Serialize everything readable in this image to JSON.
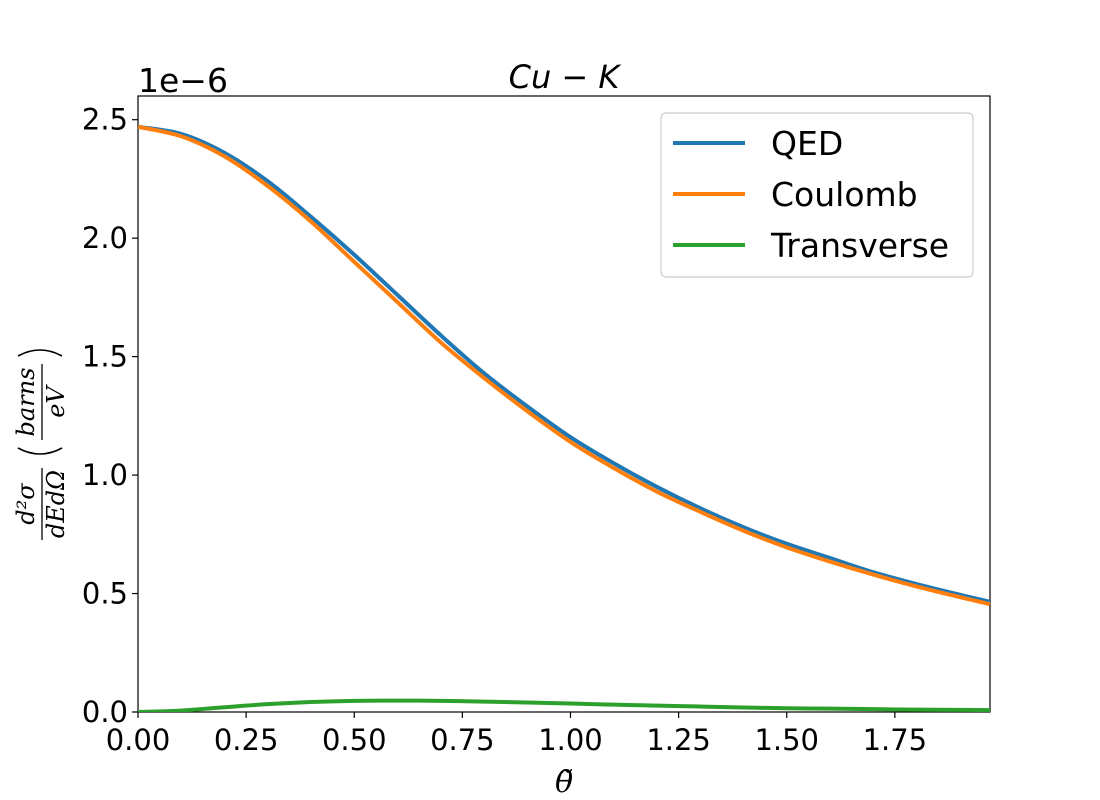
{
  "chart_data": {
    "type": "line",
    "title": "Cu − K",
    "xlabel": "θ̃",
    "ylabel": "d²σ/dEdΩ (barns/eV)",
    "ylabel_parts": {
      "num": "d²σ",
      "den": "dEdΩ",
      "unit_num": "barns",
      "unit_den": "eV"
    },
    "y_offset_label": "1e−6",
    "xlim": [
      0.0,
      1.97
    ],
    "ylim": [
      0.0,
      2.6
    ],
    "x_ticks": [
      0.0,
      0.25,
      0.5,
      0.75,
      1.0,
      1.25,
      1.5,
      1.75
    ],
    "x_tick_labels": [
      "0.00",
      "0.25",
      "0.50",
      "0.75",
      "1.00",
      "1.25",
      "1.50",
      "1.75"
    ],
    "y_ticks": [
      0.0,
      0.5,
      1.0,
      1.5,
      2.0,
      2.5
    ],
    "y_tick_labels": [
      "0.0",
      "0.5",
      "1.0",
      "1.5",
      "2.0",
      "2.5"
    ],
    "legend_position": "top-right",
    "x": [
      0.0,
      0.1,
      0.2,
      0.3,
      0.4,
      0.5,
      0.6,
      0.7,
      0.8,
      0.9,
      1.0,
      1.1,
      1.2,
      1.3,
      1.4,
      1.5,
      1.6,
      1.7,
      1.8,
      1.9,
      1.97
    ],
    "series": [
      {
        "name": "QED",
        "color": "#1f77b4",
        "values": [
          2.47,
          2.44,
          2.36,
          2.24,
          2.09,
          1.93,
          1.76,
          1.59,
          1.43,
          1.29,
          1.16,
          1.05,
          0.95,
          0.86,
          0.78,
          0.71,
          0.65,
          0.59,
          0.54,
          0.495,
          0.465
        ]
      },
      {
        "name": "Coulomb",
        "color": "#ff7f0e",
        "values": [
          2.47,
          2.43,
          2.345,
          2.22,
          2.07,
          1.9,
          1.73,
          1.56,
          1.41,
          1.27,
          1.14,
          1.03,
          0.93,
          0.845,
          0.765,
          0.695,
          0.635,
          0.58,
          0.53,
          0.485,
          0.455
        ]
      },
      {
        "name": "Transverse",
        "color": "#2ca02c",
        "values": [
          0.0,
          0.006,
          0.02,
          0.033,
          0.042,
          0.047,
          0.048,
          0.047,
          0.044,
          0.04,
          0.036,
          0.031,
          0.027,
          0.023,
          0.019,
          0.016,
          0.014,
          0.012,
          0.01,
          0.009,
          0.008
        ]
      }
    ]
  }
}
